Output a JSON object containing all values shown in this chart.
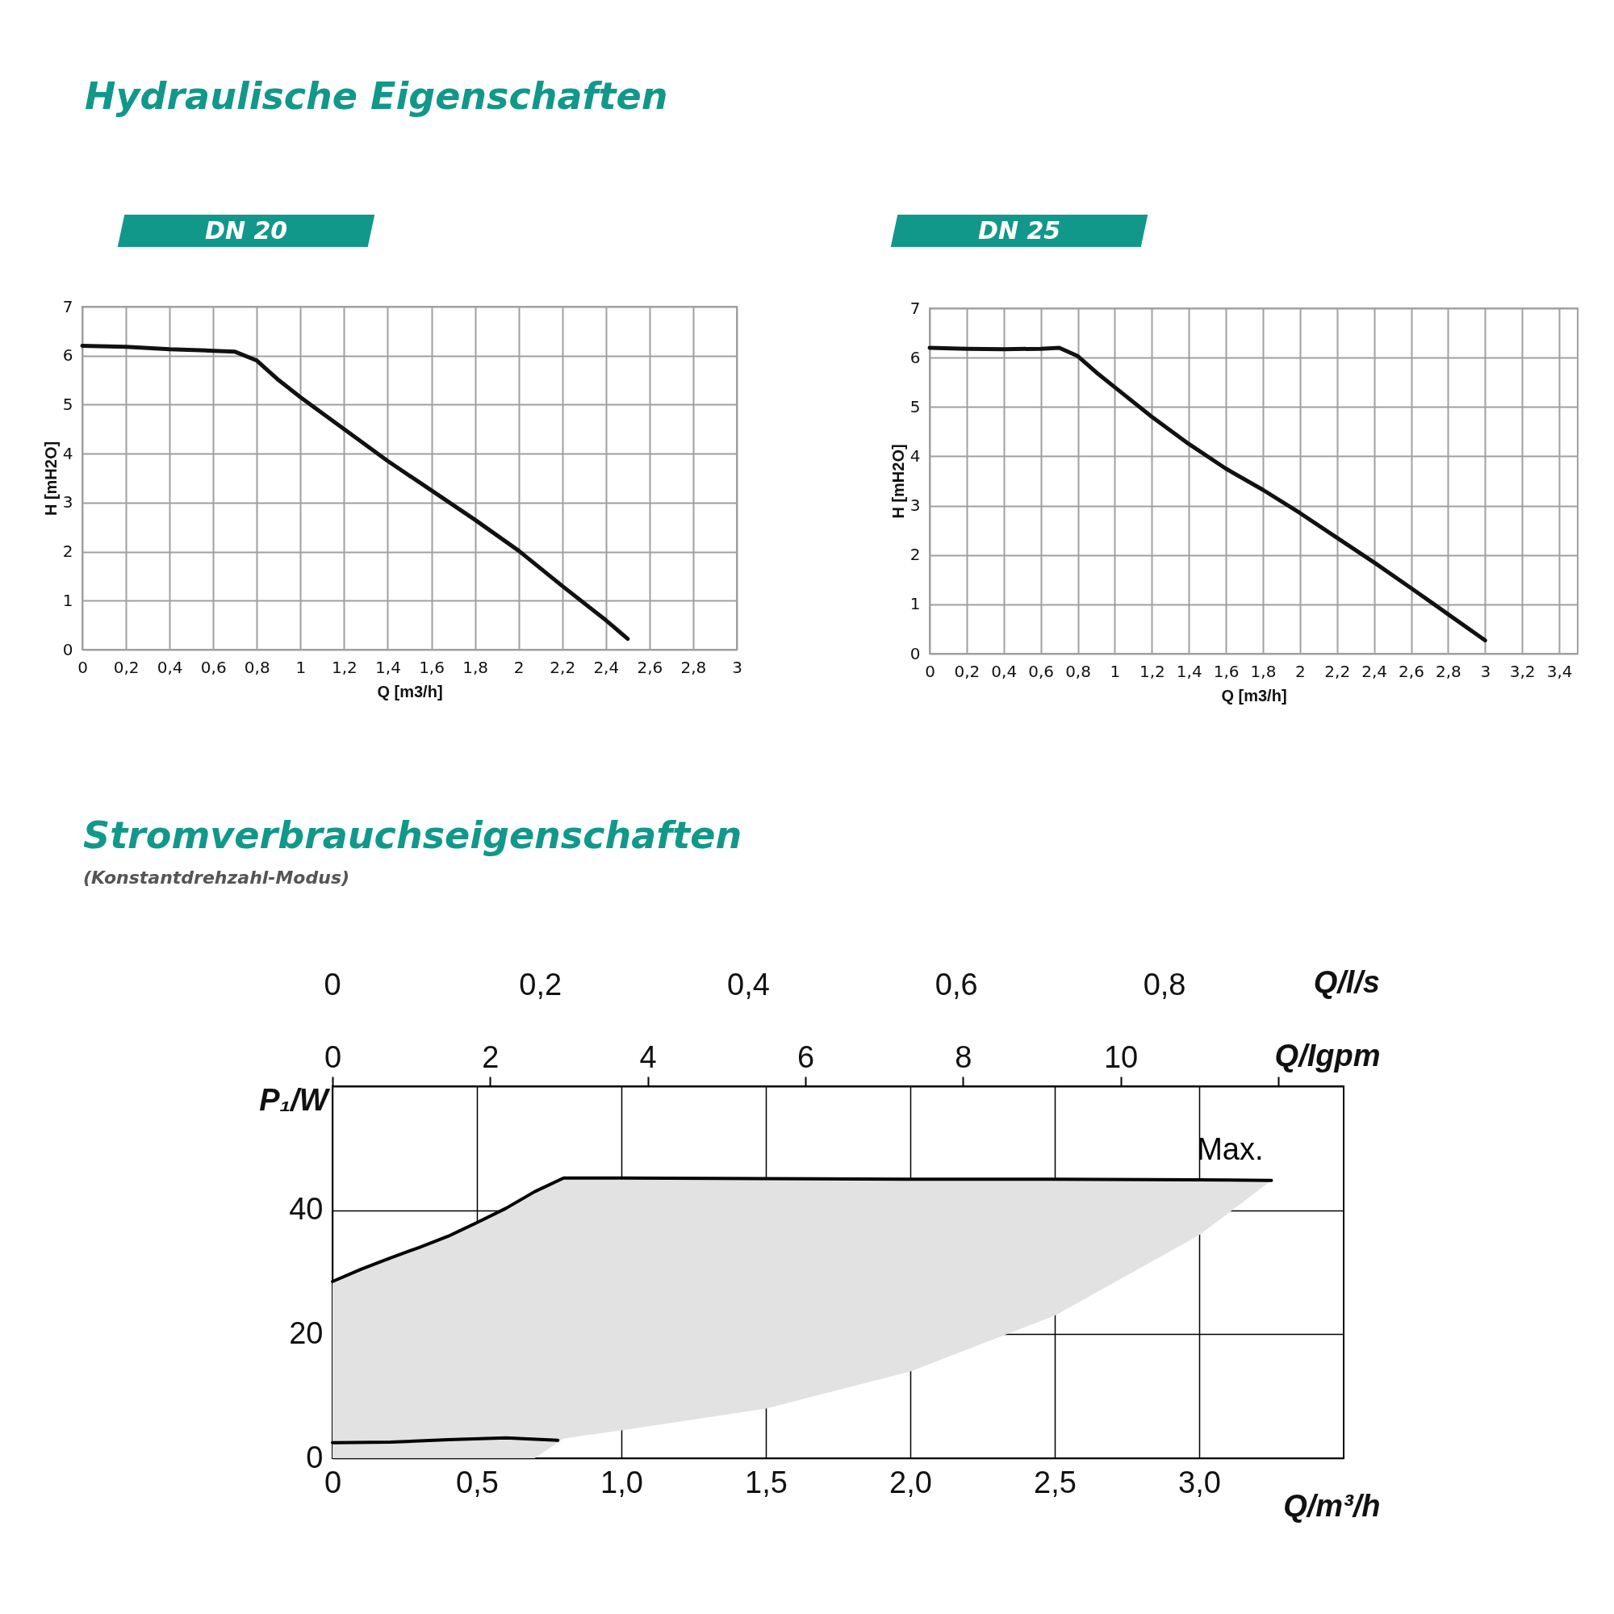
{
  "chart_data": [
    {
      "type": "line",
      "title": "Hydraulische Eigenschaften",
      "subtitle": "DN 20",
      "xlabel": "Q [m3/h]",
      "ylabel": "H [mH2O]",
      "x": [
        0,
        0.2,
        0.4,
        0.6,
        0.7,
        0.8,
        0.9,
        1.0,
        1.2,
        1.4,
        1.6,
        1.8,
        2.0,
        2.2,
        2.4,
        2.5
      ],
      "series": [
        {
          "color": "#111111",
          "values": [
            6.2,
            6.18,
            6.13,
            6.1,
            6.08,
            5.9,
            5.5,
            5.15,
            4.5,
            3.85,
            3.25,
            2.65,
            2.02,
            1.3,
            0.6,
            0.22
          ]
        }
      ],
      "xlim": [
        0,
        3
      ],
      "xticks": [
        0,
        {
          "value": 0.2,
          "label": "0,2"
        },
        {
          "value": 0.4,
          "label": "0,4"
        },
        {
          "value": 0.6,
          "label": "0,6"
        },
        {
          "value": 0.8,
          "label": "0,8"
        },
        1,
        {
          "value": 1.2,
          "label": "1,2"
        },
        {
          "value": 1.4,
          "label": "1,4"
        },
        {
          "value": 1.6,
          "label": "1,6"
        },
        {
          "value": 1.8,
          "label": "1,8"
        },
        2,
        {
          "value": 2.2,
          "label": "2,2"
        },
        {
          "value": 2.4,
          "label": "2,4"
        },
        {
          "value": 2.6,
          "label": "2,6"
        },
        {
          "value": 2.8,
          "label": "2,8"
        },
        3
      ],
      "ylim": [
        0,
        7
      ],
      "yticks": [
        0,
        1,
        2,
        3,
        4,
        5,
        6,
        7
      ],
      "grid": true
    },
    {
      "type": "line",
      "subtitle": "DN 25",
      "xlabel": "Q [m3/h]",
      "ylabel": "H [mH2O]",
      "x": [
        0,
        0.2,
        0.4,
        0.6,
        0.7,
        0.8,
        0.9,
        1.0,
        1.2,
        1.4,
        1.6,
        1.8,
        2.0,
        2.2,
        2.4,
        2.6,
        2.8,
        3.0
      ],
      "series": [
        {
          "color": "#111111",
          "values": [
            6.2,
            6.18,
            6.17,
            6.18,
            6.2,
            6.03,
            5.7,
            5.4,
            4.8,
            4.25,
            3.75,
            3.32,
            2.85,
            2.35,
            1.85,
            1.33,
            0.8,
            0.27
          ]
        }
      ],
      "xlim": [
        0,
        3.5
      ],
      "xticks": [
        0,
        {
          "value": 0.2,
          "label": "0,2"
        },
        {
          "value": 0.4,
          "label": "0,4"
        },
        {
          "value": 0.6,
          "label": "0,6"
        },
        {
          "value": 0.8,
          "label": "0,8"
        },
        1,
        {
          "value": 1.2,
          "label": "1,2"
        },
        {
          "value": 1.4,
          "label": "1,4"
        },
        {
          "value": 1.6,
          "label": "1,6"
        },
        {
          "value": 1.8,
          "label": "1,8"
        },
        2,
        {
          "value": 2.2,
          "label": "2,2"
        },
        {
          "value": 2.4,
          "label": "2,4"
        },
        {
          "value": 2.6,
          "label": "2,6"
        },
        {
          "value": 2.8,
          "label": "2,8"
        },
        3,
        {
          "value": 3.2,
          "label": "3,2"
        },
        {
          "value": 3.4,
          "label": "3,4"
        }
      ],
      "ylim": [
        0,
        7
      ],
      "yticks": [
        0,
        1,
        2,
        3,
        4,
        5,
        6,
        7
      ],
      "grid": true
    },
    {
      "type": "line",
      "title": "Stromverbrauchseigenschaften",
      "subtitle": "(Konstantdrehzahl-Modus)",
      "xlabel": "Q/m³/h",
      "ylabel": "P₁/W",
      "x2label": "Q/Igpm",
      "annotations": [
        "0",
        "0,2",
        "0,4",
        "0,6",
        "0,8",
        "Q/l/s"
      ],
      "series": [
        {
          "name": "Max.",
          "color": "#000000",
          "x": [
            0,
            0.1,
            0.2,
            0.3,
            0.4,
            0.5,
            0.6,
            0.7,
            0.8,
            1.0,
            1.5,
            2.0,
            2.5,
            3.0,
            3.25
          ],
          "values": [
            28.5,
            30.5,
            32.3,
            34,
            35.8,
            38,
            40.3,
            43,
            45.2,
            45.2,
            45.1,
            45,
            45,
            44.9,
            44.8
          ],
          "lower": [
            0,
            0,
            0,
            0,
            0,
            0,
            0,
            0,
            3.2,
            4.5,
            8,
            14,
            23,
            36,
            44.8
          ],
          "upper": [
            28.5,
            30.5,
            32.3,
            34,
            35.8,
            38,
            40.3,
            43,
            45.2,
            45.2,
            45.1,
            45,
            45,
            44.9,
            44.8
          ]
        },
        {
          "color": "#000000",
          "x": [
            0,
            0.2,
            0.4,
            0.6,
            0.78
          ],
          "values": [
            2.5,
            2.6,
            3,
            3.3,
            2.9
          ]
        }
      ],
      "xlim": [
        0,
        3.5
      ],
      "xticks": [
        0,
        {
          "value": 0.5,
          "label": "0,5"
        },
        {
          "value": 1,
          "label": "1,0"
        },
        {
          "value": 1.5,
          "label": "1,5"
        },
        {
          "value": 2,
          "label": "2,0"
        },
        {
          "value": 2.5,
          "label": "2,5"
        },
        {
          "value": 3,
          "label": "3,0"
        }
      ],
      "x2lim": [
        0,
        12.83
      ],
      "x2ticks": [
        0,
        2,
        4,
        6,
        8,
        10,
        {
          "value": 12,
          "label": null
        }
      ],
      "ylim": [
        0,
        60
      ],
      "yticks": [
        0,
        20,
        40
      ],
      "grid": true
    }
  ]
}
